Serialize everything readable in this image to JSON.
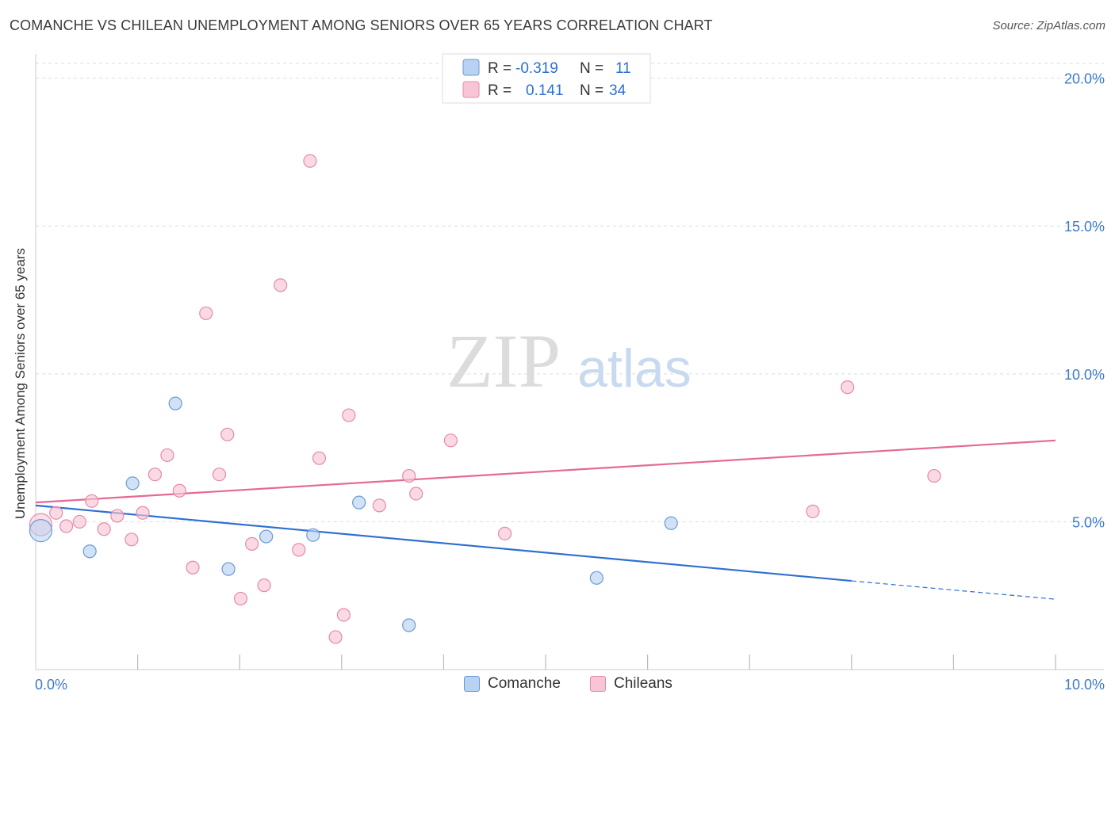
{
  "title": "COMANCHE VS CHILEAN UNEMPLOYMENT AMONG SENIORS OVER 65 YEARS CORRELATION CHART",
  "source": "Source: ZipAtlas.com",
  "watermark": {
    "zip": "ZIP",
    "atlas": "atlas"
  },
  "colors": {
    "comanche_fill": "#b8d3f2",
    "comanche_stroke": "#6a9ad6",
    "comanche_line": "#2f6fd0",
    "chileans_fill": "#f8c5d6",
    "chileans_stroke": "#e48aa8",
    "chileans_line": "#e46a93",
    "axis_label": "#3d7acb",
    "grid": "#dddddd"
  },
  "legend": {
    "rows": [
      {
        "series": "Comanche",
        "r_label": "R =",
        "r_value": "-0.319",
        "n_label": "N =",
        "n_value": "11"
      },
      {
        "series": "Chileans",
        "r_label": "R =",
        "r_value": "0.141",
        "n_label": "N =",
        "n_value": "34"
      }
    ]
  },
  "bottom_legend": [
    {
      "label": "Comanche"
    },
    {
      "label": "Chileans"
    }
  ],
  "chart_data": {
    "type": "scatter",
    "title": "COMANCHE VS CHILEAN UNEMPLOYMENT AMONG SENIORS OVER 65 YEARS CORRELATION CHART",
    "xlabel": "",
    "ylabel": "Unemployment Among Seniors over 65 years",
    "xlim": [
      0,
      10
    ],
    "ylim": [
      0,
      20.5
    ],
    "x_tick_labels": [
      {
        "value": 0,
        "label": "0.0%"
      },
      {
        "value": 10,
        "label": "10.0%"
      }
    ],
    "x_minor_ticks": [
      1,
      2,
      3,
      4,
      5,
      6,
      7,
      8,
      9,
      10
    ],
    "y_ticks": [
      {
        "value": 5,
        "label": "5.0%"
      },
      {
        "value": 10,
        "label": "10.0%"
      },
      {
        "value": 15,
        "label": "15.0%"
      },
      {
        "value": 20,
        "label": "20.0%"
      }
    ],
    "series": [
      {
        "name": "Comanche",
        "points": [
          {
            "x": 0.05,
            "y": 4.7,
            "big": true
          },
          {
            "x": 0.53,
            "y": 4.0
          },
          {
            "x": 0.95,
            "y": 6.3
          },
          {
            "x": 1.37,
            "y": 9.0
          },
          {
            "x": 1.89,
            "y": 3.4
          },
          {
            "x": 2.26,
            "y": 4.5
          },
          {
            "x": 2.72,
            "y": 4.55
          },
          {
            "x": 3.17,
            "y": 5.65
          },
          {
            "x": 3.66,
            "y": 1.5
          },
          {
            "x": 5.5,
            "y": 3.1
          },
          {
            "x": 6.23,
            "y": 4.95
          }
        ],
        "trend": {
          "x0": 0,
          "y0": 5.55,
          "x1": 8.0,
          "y1": 3.0,
          "dash_to_x": 10.0,
          "dash_to_y": 2.38
        }
      },
      {
        "name": "Chileans",
        "points": [
          {
            "x": 0.05,
            "y": 4.9,
            "big": true
          },
          {
            "x": 0.2,
            "y": 5.3
          },
          {
            "x": 0.3,
            "y": 4.85
          },
          {
            "x": 0.43,
            "y": 5.0
          },
          {
            "x": 0.55,
            "y": 5.7
          },
          {
            "x": 0.67,
            "y": 4.75
          },
          {
            "x": 0.8,
            "y": 5.2
          },
          {
            "x": 0.94,
            "y": 4.4
          },
          {
            "x": 1.05,
            "y": 5.3
          },
          {
            "x": 1.17,
            "y": 6.6
          },
          {
            "x": 1.29,
            "y": 7.25
          },
          {
            "x": 1.41,
            "y": 6.05
          },
          {
            "x": 1.54,
            "y": 3.45
          },
          {
            "x": 1.67,
            "y": 12.05
          },
          {
            "x": 1.8,
            "y": 6.6
          },
          {
            "x": 1.88,
            "y": 7.95
          },
          {
            "x": 2.01,
            "y": 2.4
          },
          {
            "x": 2.12,
            "y": 4.25
          },
          {
            "x": 2.24,
            "y": 2.85
          },
          {
            "x": 2.4,
            "y": 13.0
          },
          {
            "x": 2.58,
            "y": 4.05
          },
          {
            "x": 2.69,
            "y": 17.2
          },
          {
            "x": 2.78,
            "y": 7.15
          },
          {
            "x": 2.94,
            "y": 1.1
          },
          {
            "x": 3.02,
            "y": 1.85
          },
          {
            "x": 3.07,
            "y": 8.6
          },
          {
            "x": 3.37,
            "y": 5.55
          },
          {
            "x": 3.66,
            "y": 6.55
          },
          {
            "x": 3.73,
            "y": 5.95
          },
          {
            "x": 4.07,
            "y": 7.75
          },
          {
            "x": 4.6,
            "y": 4.6
          },
          {
            "x": 7.62,
            "y": 5.35
          },
          {
            "x": 7.96,
            "y": 9.55
          },
          {
            "x": 8.81,
            "y": 6.55
          }
        ],
        "trend": {
          "x0": 0,
          "y0": 5.65,
          "x1": 10.0,
          "y1": 7.75
        }
      }
    ]
  }
}
